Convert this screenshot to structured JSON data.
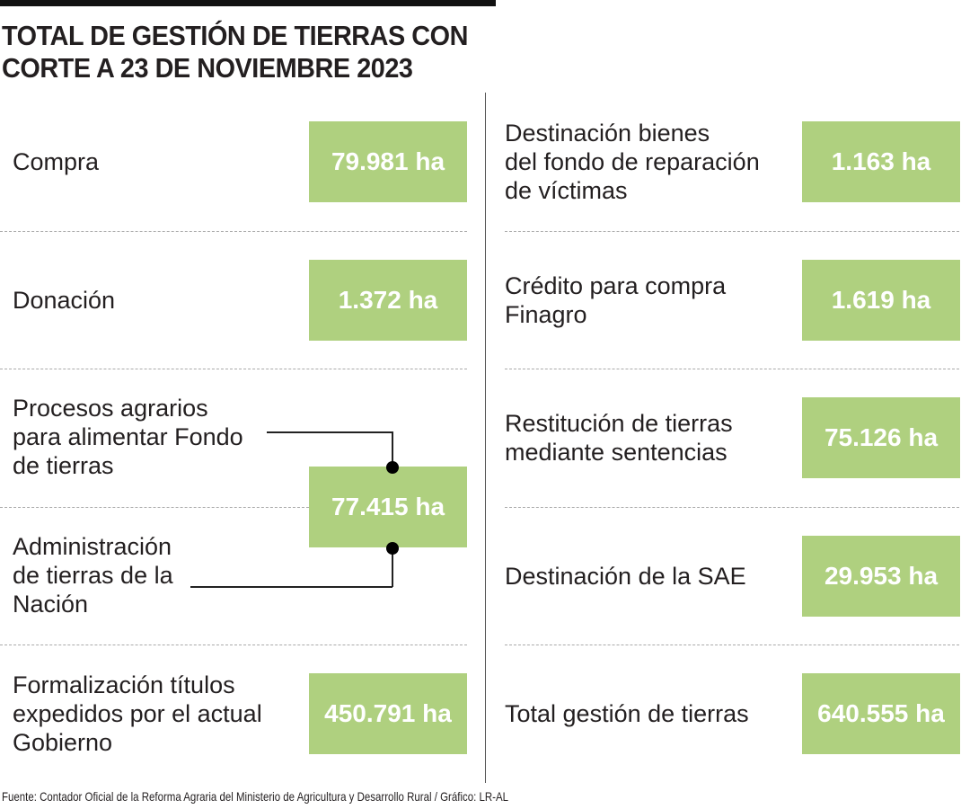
{
  "title": "TOTAL DE GESTIÓN DE TIERRAS CON\nCORTE A 23 DE NOVIEMBRE 2023",
  "source": "Fuente: Contador Oficial de la Reforma Agraria del Ministerio de Agricultura y Desarrollo Rural / Gráfico: LR-AL",
  "colors": {
    "box": "#afd07f",
    "text": "#231f20"
  },
  "chart_data": {
    "type": "table",
    "title": "TOTAL DE GESTIÓN DE TIERRAS CON CORTE A 23 DE NOVIEMBRE 2023",
    "unit": "ha",
    "left": [
      {
        "label": "Compra",
        "value": "79.981 ha"
      },
      {
        "label": "Donación",
        "value": "1.372 ha"
      },
      {
        "label": "Procesos agrarios\npara alimentar Fondo\nde tierras",
        "label2": "Administración\nde tierras de la\nNación",
        "value": "77.415 ha"
      },
      {
        "label": "Formalización títulos\nexpedidos por el actual\nGobierno",
        "value": "450.791 ha"
      }
    ],
    "right": [
      {
        "label": "Destinación bienes\ndel fondo de reparación\nde víctimas",
        "value": "1.163 ha"
      },
      {
        "label": "Crédito para compra\nFinagro",
        "value": "1.619 ha"
      },
      {
        "label": "Restitución de tierras\nmediante sentencias",
        "value": "75.126 ha"
      },
      {
        "label": "Destinación de la SAE",
        "value": "29.953 ha"
      },
      {
        "label": "Total gestión de tierras",
        "value": "640.555 ha"
      }
    ]
  }
}
